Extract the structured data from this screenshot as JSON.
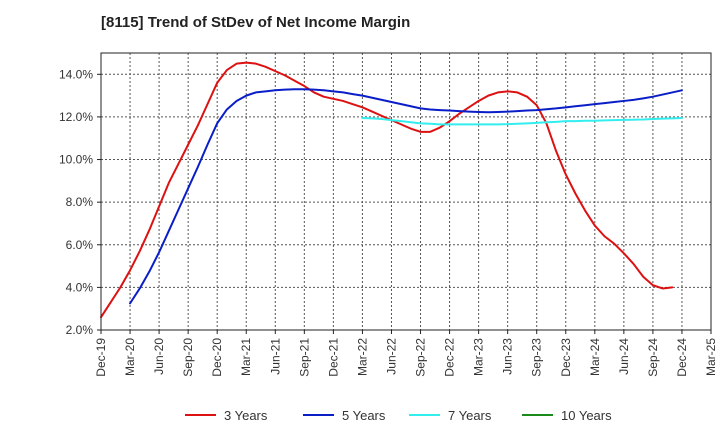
{
  "chart_data": {
    "type": "line",
    "title": "[8115]  Trend of StDev of Net Income Margin",
    "xlabel": "",
    "ylabel": "",
    "x_tick_labels": [
      "Dec-19",
      "Mar-20",
      "Jun-20",
      "Sep-20",
      "Dec-20",
      "Mar-21",
      "Jun-21",
      "Sep-21",
      "Dec-21",
      "Mar-22",
      "Jun-22",
      "Sep-22",
      "Dec-22",
      "Mar-23",
      "Jun-23",
      "Sep-23",
      "Dec-23",
      "Mar-24",
      "Jun-24",
      "Sep-24",
      "Dec-24",
      "Mar-25"
    ],
    "y_tick_labels": [
      "2.0%",
      "4.0%",
      "6.0%",
      "8.0%",
      "10.0%",
      "12.0%",
      "14.0%"
    ],
    "ylim": [
      2.0,
      15.0
    ],
    "y_unit": "%",
    "grid": true,
    "legend_position": "bottom",
    "x_dates": [
      "Dec-19",
      "Jan-20",
      "Feb-20",
      "Mar-20",
      "Apr-20",
      "May-20",
      "Jun-20",
      "Jul-20",
      "Aug-20",
      "Sep-20",
      "Oct-20",
      "Nov-20",
      "Dec-20",
      "Jan-21",
      "Feb-21",
      "Mar-21",
      "Apr-21",
      "May-21",
      "Jun-21",
      "Jul-21",
      "Aug-21",
      "Sep-21",
      "Oct-21",
      "Nov-21",
      "Dec-21",
      "Jan-22",
      "Feb-22",
      "Mar-22",
      "Apr-22",
      "May-22",
      "Jun-22",
      "Jul-22",
      "Aug-22",
      "Sep-22",
      "Oct-22",
      "Nov-22",
      "Dec-22",
      "Jan-23",
      "Feb-23",
      "Mar-23",
      "Apr-23",
      "May-23",
      "Jun-23",
      "Jul-23",
      "Aug-23",
      "Sep-23",
      "Oct-23",
      "Nov-23",
      "Dec-23",
      "Jan-24",
      "Feb-24",
      "Mar-24",
      "Apr-24",
      "May-24",
      "Jun-24",
      "Jul-24",
      "Aug-24",
      "Sep-24",
      "Oct-24",
      "Nov-24",
      "Dec-24"
    ],
    "series": [
      {
        "name": "3 Years",
        "color": "#dd1111",
        "values": [
          2.6,
          3.3,
          4.0,
          4.8,
          5.7,
          6.7,
          7.8,
          8.9,
          9.8,
          10.7,
          11.6,
          12.6,
          13.6,
          14.2,
          14.5,
          14.55,
          14.5,
          14.35,
          14.15,
          13.95,
          13.7,
          13.45,
          13.15,
          12.95,
          12.85,
          12.75,
          12.6,
          12.45,
          12.25,
          12.05,
          11.85,
          11.65,
          11.45,
          11.3,
          11.3,
          11.5,
          11.8,
          12.15,
          12.45,
          12.75,
          13.0,
          13.15,
          13.2,
          13.15,
          12.95,
          12.55,
          11.7,
          10.4,
          9.3,
          8.4,
          7.6,
          6.9,
          6.4,
          6.05,
          5.6,
          5.1,
          4.5,
          4.1,
          3.95,
          4.0,
          null
        ]
      },
      {
        "name": "5 Years",
        "color": "#0a1ec8",
        "values": [
          null,
          null,
          null,
          3.25,
          3.95,
          4.75,
          5.65,
          6.65,
          7.65,
          8.65,
          9.65,
          10.7,
          11.7,
          12.35,
          12.75,
          13.0,
          13.15,
          13.2,
          13.25,
          13.28,
          13.3,
          13.3,
          13.28,
          13.25,
          13.2,
          13.15,
          13.07,
          13.0,
          12.9,
          12.8,
          12.7,
          12.6,
          12.5,
          12.4,
          12.35,
          12.32,
          12.3,
          12.27,
          12.25,
          12.23,
          12.22,
          12.23,
          12.25,
          12.27,
          12.3,
          12.32,
          12.36,
          12.4,
          12.45,
          12.5,
          12.55,
          12.6,
          12.65,
          12.7,
          12.75,
          12.8,
          12.87,
          12.95,
          13.05,
          13.15,
          13.25
        ]
      },
      {
        "name": "7 Years",
        "color": "#33eeee",
        "values": [
          null,
          null,
          null,
          null,
          null,
          null,
          null,
          null,
          null,
          null,
          null,
          null,
          null,
          null,
          null,
          null,
          null,
          null,
          null,
          null,
          null,
          null,
          null,
          null,
          null,
          null,
          null,
          11.95,
          11.93,
          11.9,
          11.85,
          11.8,
          11.75,
          11.7,
          11.68,
          11.65,
          11.65,
          11.65,
          11.65,
          11.65,
          11.65,
          11.65,
          11.66,
          11.68,
          11.7,
          11.72,
          11.75,
          11.77,
          11.8,
          11.8,
          11.82,
          11.82,
          11.84,
          11.85,
          11.86,
          11.87,
          11.88,
          11.9,
          11.92,
          11.93,
          11.95
        ]
      },
      {
        "name": "10 Years",
        "color": "#1a8a1a",
        "values": []
      }
    ]
  }
}
